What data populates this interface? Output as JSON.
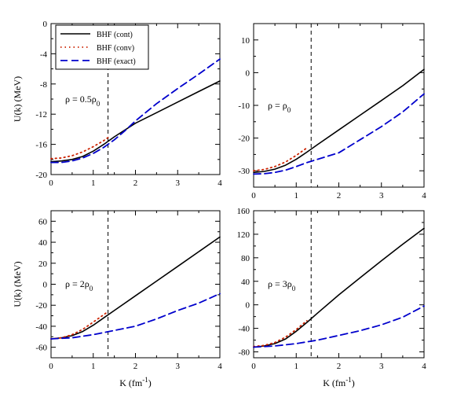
{
  "colors": {
    "cont": "#000000",
    "conv": "#cc2200",
    "exact": "#0000cc",
    "vline": "#000000"
  },
  "chart_data": [
    {
      "type": "line",
      "panel": "top-left",
      "annotation_base": "ρ = 0.5ρ",
      "annotation_sub": "0",
      "ylabel": "U(k)  (MeV)",
      "xlabel": "",
      "xlim": [
        0,
        4
      ],
      "ylim": [
        -20,
        0
      ],
      "xticks": [
        0,
        1,
        2,
        3,
        4
      ],
      "yticks": [
        -20,
        -16,
        -12,
        -8,
        -4,
        0
      ],
      "vline_x": 1.35,
      "legend": {
        "placement": "top-left",
        "entries": [
          {
            "key": "cont",
            "label": "BHF (cont)"
          },
          {
            "key": "conv",
            "label": "BHF (conv)"
          },
          {
            "key": "exact",
            "label": "BHF (exact)"
          }
        ]
      },
      "series": [
        {
          "name": "BHF (cont)",
          "key": "cont",
          "x": [
            0,
            0.25,
            0.5,
            0.75,
            1.0,
            1.25,
            1.5,
            2.0,
            2.5,
            3.0,
            3.5,
            4.0
          ],
          "y": [
            -18.3,
            -18.2,
            -18.0,
            -17.6,
            -16.9,
            -16.0,
            -15.0,
            -13.2,
            -11.8,
            -10.4,
            -9.0,
            -7.6
          ]
        },
        {
          "name": "BHF (conv)",
          "key": "conv",
          "x": [
            0,
            0.25,
            0.5,
            0.75,
            1.0,
            1.25,
            1.35
          ],
          "y": [
            -17.9,
            -17.8,
            -17.5,
            -17.0,
            -16.3,
            -15.5,
            -15.1
          ]
        },
        {
          "name": "BHF (exact)",
          "key": "exact",
          "x": [
            0,
            0.25,
            0.5,
            0.75,
            1.0,
            1.25,
            1.5,
            1.75,
            2.0,
            2.5,
            3.0,
            3.5,
            4.0
          ],
          "y": [
            -18.4,
            -18.4,
            -18.2,
            -17.8,
            -17.2,
            -16.4,
            -15.4,
            -14.2,
            -12.9,
            -10.6,
            -8.6,
            -6.7,
            -4.7
          ]
        }
      ]
    },
    {
      "type": "line",
      "panel": "top-right",
      "annotation_base": "ρ = ρ",
      "annotation_sub": "0",
      "ylabel": "",
      "xlabel": "",
      "xlim": [
        0,
        4
      ],
      "ylim": [
        -35,
        15
      ],
      "xticks": [
        0,
        1,
        2,
        3,
        4
      ],
      "yticks": [
        -30,
        -20,
        -10,
        0,
        10
      ],
      "vline_x": 1.35,
      "series": [
        {
          "name": "BHF (cont)",
          "key": "cont",
          "x": [
            0,
            0.25,
            0.5,
            0.75,
            1.0,
            1.25,
            1.5,
            2.0,
            2.5,
            3.0,
            3.5,
            4.0
          ],
          "y": [
            -30.5,
            -30.2,
            -29.5,
            -28.3,
            -26.5,
            -24.3,
            -22.0,
            -17.5,
            -13.0,
            -8.5,
            -4.0,
            1.0
          ]
        },
        {
          "name": "BHF (conv)",
          "key": "conv",
          "x": [
            0,
            0.25,
            0.5,
            0.75,
            1.0,
            1.25
          ],
          "y": [
            -30.0,
            -29.6,
            -28.7,
            -27.3,
            -25.3,
            -23.0
          ]
        },
        {
          "name": "BHF (exact)",
          "key": "exact",
          "x": [
            0,
            0.25,
            0.5,
            0.75,
            1.0,
            1.25,
            1.5,
            2.0,
            2.5,
            3.0,
            3.5,
            4.0
          ],
          "y": [
            -31.0,
            -30.9,
            -30.5,
            -29.8,
            -28.7,
            -27.5,
            -26.5,
            -24.5,
            -20.5,
            -16.5,
            -12.0,
            -6.5
          ]
        }
      ]
    },
    {
      "type": "line",
      "panel": "bottom-left",
      "annotation_base": "ρ = 2ρ",
      "annotation_sub": "0",
      "ylabel": "U(k)  (MeV)",
      "xlabel": "K  (fm",
      "xlabel_sup": "-1",
      "xlabel_end": ")",
      "xlim": [
        0,
        4
      ],
      "ylim": [
        -70,
        70
      ],
      "xticks": [
        0,
        1,
        2,
        3,
        4
      ],
      "yticks": [
        -60,
        -40,
        -20,
        0,
        20,
        40,
        60
      ],
      "vline_x": 1.35,
      "series": [
        {
          "name": "BHF (cont)",
          "key": "cont",
          "x": [
            0,
            0.25,
            0.5,
            0.75,
            1.0,
            1.25,
            1.5,
            2.0,
            2.5,
            3.0,
            3.5,
            4.0
          ],
          "y": [
            -52,
            -51,
            -49,
            -45,
            -39,
            -32,
            -25,
            -11,
            3,
            17,
            31,
            45
          ]
        },
        {
          "name": "BHF (conv)",
          "key": "conv",
          "x": [
            0,
            0.25,
            0.5,
            0.75,
            1.0,
            1.25,
            1.35
          ],
          "y": [
            -52,
            -51,
            -48,
            -43,
            -36,
            -29,
            -26
          ]
        },
        {
          "name": "BHF (exact)",
          "key": "exact",
          "x": [
            0,
            0.5,
            1.0,
            1.5,
            2.0,
            2.5,
            3.0,
            3.5,
            4.0
          ],
          "y": [
            -52,
            -51,
            -48,
            -44,
            -40,
            -33,
            -25,
            -18,
            -9
          ]
        }
      ]
    },
    {
      "type": "line",
      "panel": "bottom-right",
      "annotation_base": "ρ = 3ρ",
      "annotation_sub": "0",
      "ylabel": "",
      "xlabel": "K  (fm",
      "xlabel_sup": "-1",
      "xlabel_end": ")",
      "xlim": [
        0,
        4
      ],
      "ylim": [
        -90,
        160
      ],
      "xticks": [
        0,
        1,
        2,
        3,
        4
      ],
      "yticks": [
        -80,
        -40,
        0,
        40,
        80,
        120,
        160
      ],
      "vline_x": 1.35,
      "series": [
        {
          "name": "BHF (cont)",
          "key": "cont",
          "x": [
            0,
            0.25,
            0.5,
            0.75,
            1.0,
            1.25,
            1.5,
            2.0,
            2.5,
            3.0,
            3.5,
            4.0
          ],
          "y": [
            -72,
            -70,
            -66,
            -58,
            -45,
            -30,
            -14,
            17,
            46,
            75,
            103,
            130
          ]
        },
        {
          "name": "BHF (conv)",
          "key": "conv",
          "x": [
            0,
            0.25,
            0.5,
            0.75,
            1.0,
            1.25
          ],
          "y": [
            -71,
            -69,
            -64,
            -55,
            -42,
            -27
          ]
        },
        {
          "name": "BHF (exact)",
          "key": "exact",
          "x": [
            0,
            0.5,
            1.0,
            1.5,
            2.0,
            2.5,
            3.0,
            3.5,
            4.0
          ],
          "y": [
            -72,
            -70,
            -66,
            -60,
            -52,
            -44,
            -34,
            -21,
            -2
          ]
        }
      ]
    }
  ]
}
